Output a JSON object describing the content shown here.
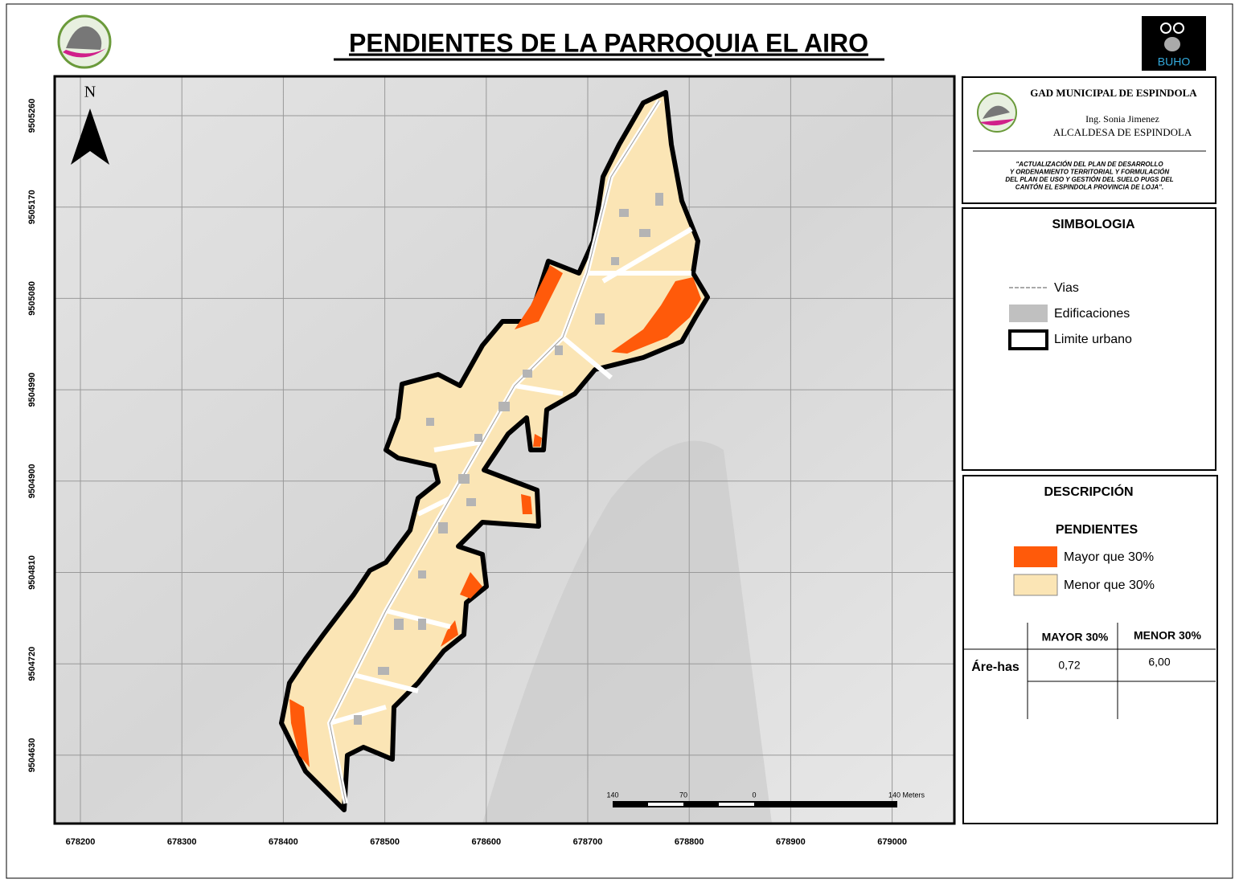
{
  "title": "PENDIENTES  DE LA PARROQUIA EL AIRO",
  "logo_text": "BUHO",
  "map": {
    "north": "N",
    "y_labels": [
      "9505260",
      "9505170",
      "9505080",
      "9504990",
      "9504900",
      "9504810",
      "9504720",
      "9504630"
    ],
    "x_labels": [
      "678200",
      "678300",
      "678400",
      "678500",
      "678600",
      "678700",
      "678800",
      "678900",
      "679000"
    ],
    "scale_labels": [
      "140",
      "70",
      "0",
      "140 Meters"
    ]
  },
  "header": {
    "org": "GAD MUNICIPAL DE ESPINDOLA",
    "name": "Ing. Sonia Jimenez",
    "role": "ALCALDESA DE ESPINDOLA",
    "project": [
      "\"ACTUALIZACIÓN DEL PLAN DE DESARROLLO",
      "Y ORDENAMIENTO TERRITORIAL Y FORMULACIÓN",
      "DEL PLAN DE USO Y GESTIÓN DEL SUELO PUGS DEL",
      "CANTÓN EL ESPINDOLA  PROVINCIA DE LOJA\"."
    ]
  },
  "symbology": {
    "title": "SIMBOLOGIA",
    "items": [
      "Vias",
      "Edificaciones",
      "Limite urbano"
    ]
  },
  "description": {
    "title": "DESCRIPCIÓN",
    "subtitle": "PENDIENTES",
    "items": [
      "Mayor que 30%",
      "Menor que 30%"
    ],
    "table": {
      "headers": [
        "MAYOR 30%",
        "MENOR 30%"
      ],
      "rows": [
        [
          "Áre-has",
          "0,72",
          "6,00"
        ]
      ]
    }
  }
}
